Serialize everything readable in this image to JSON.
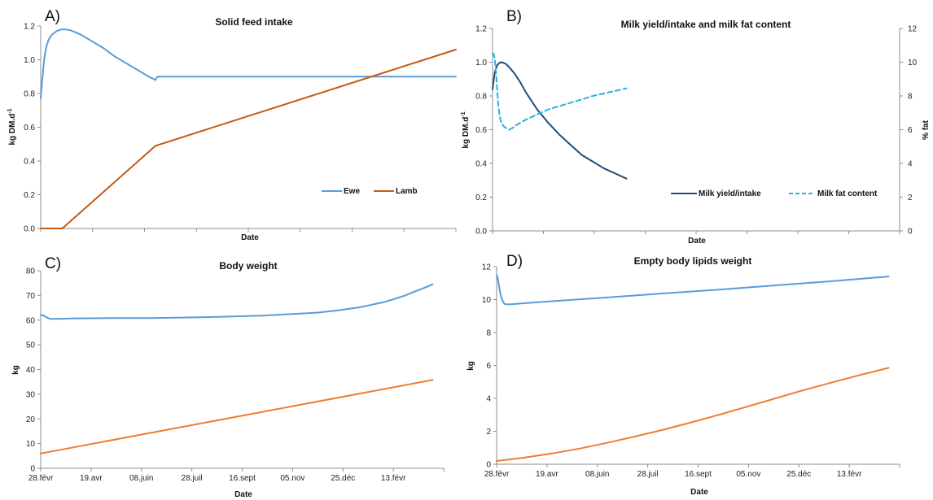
{
  "colors": {
    "ewe": "#5b9bd5",
    "lamb_a": "#c55a11",
    "lamb_cd": "#ed7d31",
    "milk_yield": "#1f4e79",
    "milk_fat": "#2ab0e0",
    "axis": "#8c8c8c"
  },
  "chart_data": [
    {
      "type": "line",
      "letter": "A)",
      "title": "Solid feed intake",
      "xlabel": "Date",
      "ylabel": "kg DM.d",
      "ylabel_sup": "-1",
      "ylim": [
        0,
        1.2
      ],
      "yticks": [
        "0.0",
        "0.2",
        "0.4",
        "0.6",
        "0.8",
        "1.0",
        "1.2"
      ],
      "xlim": [
        0,
        365
      ],
      "xtick_count": 8,
      "xtick_labels": [],
      "legend": "bottom-right",
      "series": [
        {
          "name": "Ewe",
          "color_key": "ewe",
          "dash": false,
          "x": [
            0,
            1,
            2,
            3,
            5,
            7,
            10,
            14,
            18,
            22,
            26,
            30,
            35,
            45,
            55,
            65,
            75,
            85,
            95,
            101,
            102,
            103,
            150,
            200,
            250,
            300,
            365
          ],
          "y": [
            0.77,
            0.85,
            0.93,
            1.0,
            1.08,
            1.12,
            1.15,
            1.17,
            1.18,
            1.18,
            1.175,
            1.165,
            1.15,
            1.11,
            1.07,
            1.02,
            0.98,
            0.94,
            0.9,
            0.88,
            0.895,
            0.9,
            0.9,
            0.9,
            0.9,
            0.9,
            0.9
          ]
        },
        {
          "name": "Lamb",
          "color_key": "lamb_a",
          "dash": false,
          "x": [
            0,
            19,
            101,
            365
          ],
          "y": [
            0.0,
            0.0,
            0.49,
            1.06
          ]
        }
      ]
    },
    {
      "type": "line",
      "letter": "B)",
      "title": "Milk yield/intake and milk fat content",
      "xlabel": "Date",
      "ylabel": "kg DM.d",
      "ylabel_sup": "-1",
      "ylabel_right": "% fat",
      "ylim": [
        0,
        1.2
      ],
      "yticks": [
        "0.0",
        "0.2",
        "0.4",
        "0.6",
        "0.8",
        "1.0",
        "1.2"
      ],
      "ylim_right": [
        0,
        12
      ],
      "yticks_right": [
        "0",
        "2",
        "4",
        "6",
        "8",
        "10",
        "12"
      ],
      "xlim": [
        0,
        365
      ],
      "xtick_count": 8,
      "xtick_labels": [],
      "legend": "bottom-right",
      "series": [
        {
          "name": "Milk yield/intake",
          "color_key": "milk_yield",
          "dash": false,
          "axis": "left",
          "x": [
            0,
            2,
            4,
            6,
            8,
            10,
            12,
            15,
            20,
            25,
            30,
            40,
            50,
            60,
            70,
            80,
            90,
            100,
            110,
            120
          ],
          "y": [
            0.84,
            0.94,
            0.98,
            0.995,
            1.0,
            0.995,
            0.99,
            0.97,
            0.93,
            0.88,
            0.82,
            0.72,
            0.64,
            0.57,
            0.51,
            0.45,
            0.41,
            0.37,
            0.34,
            0.31
          ]
        },
        {
          "name": "Milk fat content",
          "color_key": "milk_fat",
          "dash": true,
          "axis": "right",
          "x": [
            0,
            1,
            2,
            3,
            4,
            5,
            6,
            7,
            8,
            10,
            12,
            15,
            18,
            22,
            30,
            40,
            50,
            60,
            70,
            80,
            90,
            100,
            110,
            120
          ],
          "y": [
            10.5,
            10.5,
            10.2,
            9.5,
            8.5,
            7.6,
            7.0,
            6.6,
            6.4,
            6.2,
            6.1,
            6.0,
            6.1,
            6.3,
            6.6,
            6.9,
            7.2,
            7.4,
            7.6,
            7.8,
            8.0,
            8.15,
            8.3,
            8.45
          ]
        }
      ]
    },
    {
      "type": "line",
      "letter": "C)",
      "title": "Body weight",
      "xlabel": "Date",
      "ylabel": "kg",
      "ylim": [
        0,
        80
      ],
      "yticks": [
        "0",
        "10",
        "20",
        "30",
        "40",
        "50",
        "60",
        "70",
        "80"
      ],
      "xlim": [
        0,
        365
      ],
      "xtick_count": 8,
      "xtick_labels": [
        "28.févr",
        "19.avr",
        "08.juin",
        "28.juil",
        "16.sept",
        "05.nov",
        "25.déc",
        "13.févr"
      ],
      "series": [
        {
          "name": "",
          "color_key": "ewe",
          "dash": false,
          "x": [
            0,
            2,
            4,
            6,
            8,
            10,
            15,
            30,
            60,
            100,
            150,
            200,
            250,
            270,
            290,
            310,
            320,
            330,
            340,
            350,
            355
          ],
          "y": [
            62.0,
            62.0,
            61.5,
            61.0,
            60.6,
            60.5,
            60.5,
            60.7,
            60.8,
            60.8,
            61.2,
            61.8,
            63.0,
            64.0,
            65.3,
            67.2,
            68.5,
            70.0,
            71.8,
            73.5,
            74.5
          ]
        },
        {
          "name": "",
          "color_key": "lamb_cd",
          "dash": false,
          "x": [
            0,
            355
          ],
          "y": [
            6.0,
            35.8
          ]
        }
      ]
    },
    {
      "type": "line",
      "letter": "D)",
      "title": "Empty body lipids weight",
      "xlabel": "Date",
      "ylabel": "kg",
      "ylim": [
        0,
        12
      ],
      "yticks": [
        "0",
        "2",
        "4",
        "6",
        "8",
        "10",
        "12"
      ],
      "xlim": [
        0,
        365
      ],
      "xtick_count": 8,
      "xtick_labels": [
        "28.févr",
        "19.avr",
        "08.juin",
        "28.juil",
        "16.sept",
        "05.nov",
        "25.déc",
        "13.févr"
      ],
      "series": [
        {
          "name": "",
          "color_key": "ewe",
          "dash": false,
          "x": [
            0,
            1,
            2,
            3,
            4,
            5,
            6,
            7,
            8,
            9,
            10,
            12,
            15,
            50,
            100,
            150,
            200,
            250,
            300,
            355
          ],
          "y": [
            11.5,
            11.3,
            10.9,
            10.5,
            10.2,
            10.0,
            9.85,
            9.75,
            9.72,
            9.72,
            9.72,
            9.72,
            9.73,
            9.9,
            10.13,
            10.37,
            10.6,
            10.85,
            11.1,
            11.4
          ]
        },
        {
          "name": "",
          "color_key": "lamb_cd",
          "dash": false,
          "x": [
            0,
            25,
            50,
            75,
            100,
            125,
            150,
            175,
            200,
            225,
            250,
            275,
            300,
            325,
            355
          ],
          "y": [
            0.2,
            0.4,
            0.65,
            0.95,
            1.3,
            1.68,
            2.08,
            2.52,
            2.98,
            3.46,
            3.95,
            4.44,
            4.9,
            5.35,
            5.85
          ]
        }
      ]
    }
  ]
}
